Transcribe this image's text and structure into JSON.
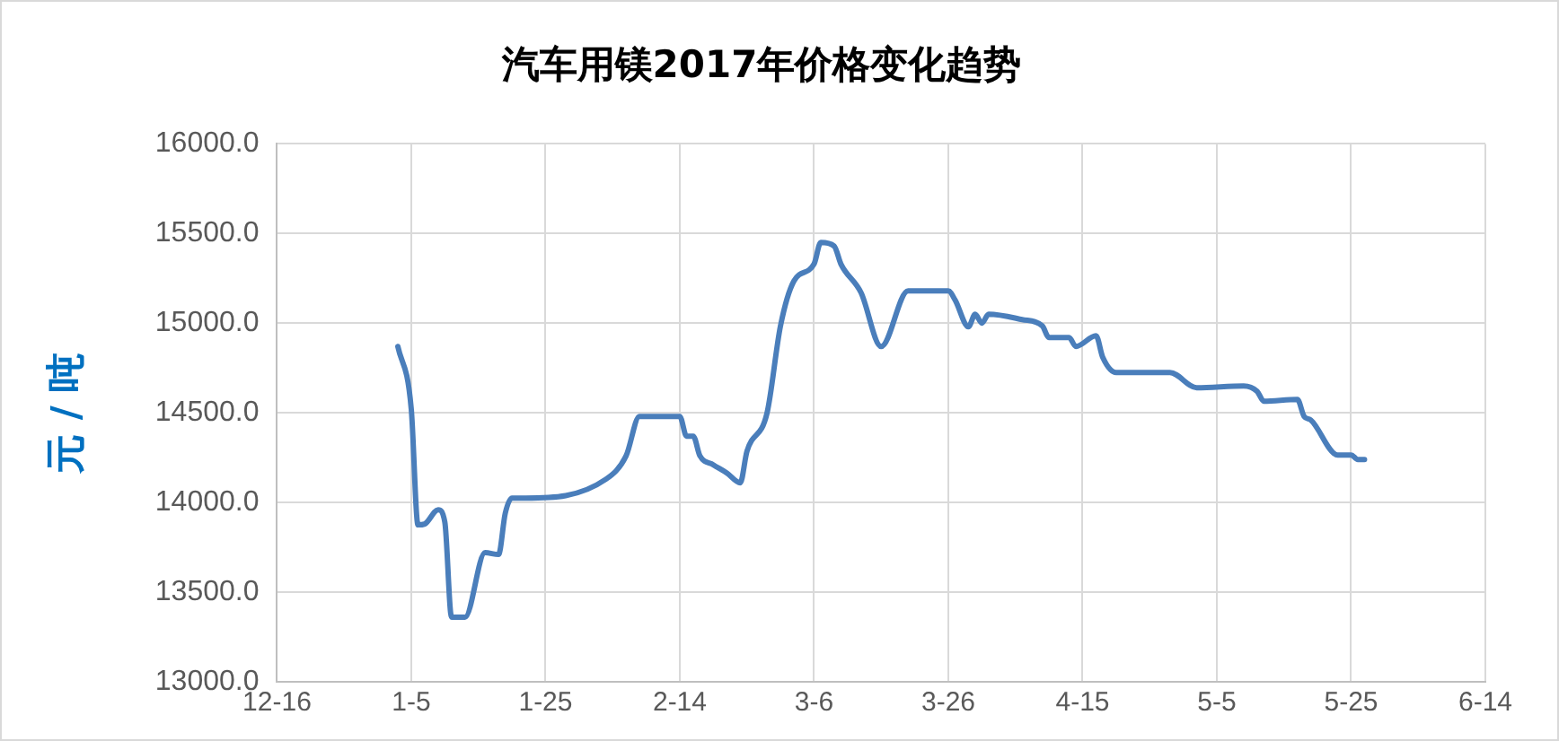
{
  "chart_data": {
    "type": "line",
    "title": "汽车用镁2017年价格变化趋势",
    "ylabel": "元 / 吨",
    "x": [
      "2017-01-03",
      "2017-01-05",
      "2017-01-06",
      "2017-01-07",
      "2017-01-09",
      "2017-01-10",
      "2017-01-11",
      "2017-01-13",
      "2017-01-16",
      "2017-01-18",
      "2017-01-19",
      "2017-01-20",
      "2017-01-22",
      "2017-02-03",
      "2017-02-06",
      "2017-02-08",
      "2017-02-14",
      "2017-02-15",
      "2017-02-16",
      "2017-02-17",
      "2017-02-19",
      "2017-02-21",
      "2017-02-23",
      "2017-02-24",
      "2017-02-27",
      "2017-03-01",
      "2017-03-03",
      "2017-03-06",
      "2017-03-07",
      "2017-03-09",
      "2017-03-10",
      "2017-03-13",
      "2017-03-16",
      "2017-03-20",
      "2017-03-26",
      "2017-03-27",
      "2017-03-29",
      "2017-03-30",
      "2017-03-31",
      "2017-04-01",
      "2017-04-06",
      "2017-04-09",
      "2017-04-10",
      "2017-04-13",
      "2017-04-14",
      "2017-04-17",
      "2017-04-18",
      "2017-04-20",
      "2017-04-28",
      "2017-05-02",
      "2017-05-09",
      "2017-05-11",
      "2017-05-12",
      "2017-05-17",
      "2017-05-18",
      "2017-05-19",
      "2017-05-23",
      "2017-05-25",
      "2017-05-26",
      "2017-05-27"
    ],
    "series": [
      {
        "color": "#4a7ebb",
        "values": [
          14870,
          14520,
          13875,
          13880,
          13960,
          13890,
          13360,
          13360,
          13720,
          13710,
          13940,
          14025,
          14025,
          14130,
          14260,
          14480,
          14480,
          14370,
          14370,
          14260,
          14210,
          14165,
          14110,
          14285,
          14500,
          14985,
          15235,
          15330,
          15450,
          15430,
          15330,
          15170,
          14870,
          15180,
          15180,
          15130,
          14980,
          15050,
          15000,
          15050,
          15020,
          14985,
          14920,
          14920,
          14870,
          14930,
          14810,
          14725,
          14725,
          14640,
          14650,
          14620,
          14565,
          14575,
          14480,
          14460,
          14265,
          14265,
          14240,
          14240
        ]
      }
    ],
    "xlim": [
      "2016-12-16",
      "2017-06-14"
    ],
    "xticks": [
      {
        "value": "2016-12-16",
        "label": "12-16"
      },
      {
        "value": "2017-01-05",
        "label": "1-5"
      },
      {
        "value": "2017-01-25",
        "label": "1-25"
      },
      {
        "value": "2017-02-14",
        "label": "2-14"
      },
      {
        "value": "2017-03-06",
        "label": "3-6"
      },
      {
        "value": "2017-03-26",
        "label": "3-26"
      },
      {
        "value": "2017-04-15",
        "label": "4-15"
      },
      {
        "value": "2017-05-05",
        "label": "5-5"
      },
      {
        "value": "2017-05-25",
        "label": "5-25"
      },
      {
        "value": "2017-06-14",
        "label": "6-14"
      }
    ],
    "ylim": [
      13000,
      16000
    ],
    "yticks": [
      {
        "value": 13000,
        "label": "13000.0"
      },
      {
        "value": 13500,
        "label": "13500.0"
      },
      {
        "value": 14000,
        "label": "14000.0"
      },
      {
        "value": 14500,
        "label": "14500.0"
      },
      {
        "value": 15000,
        "label": "15000.0"
      },
      {
        "value": 15500,
        "label": "15500.0"
      },
      {
        "value": 16000,
        "label": "16000.0"
      }
    ],
    "grid": true,
    "legend": false,
    "marker": "none",
    "line_style": "solid"
  }
}
